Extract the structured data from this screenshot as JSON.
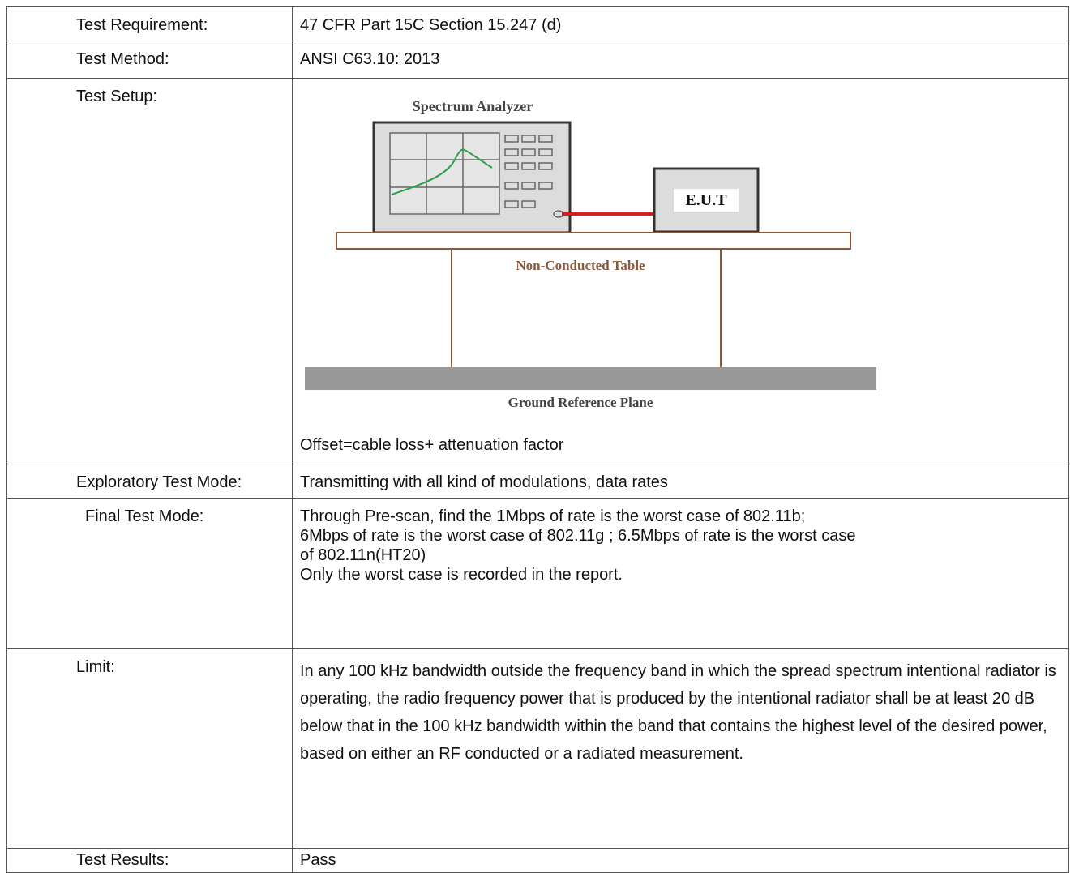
{
  "table": {
    "rows": [
      {
        "label": "Test Requirement:",
        "content": "47 CFR Part 15C Section 15.247 (d)"
      },
      {
        "label": "Test Method:",
        "content": "ANSI C63.10: 2013"
      },
      {
        "label": "Test Setup:",
        "diagram": {
          "analyzer": "Spectrum Analyzer",
          "eut": "E.U.T",
          "table": "Non-Conducted Table",
          "ground": "Ground Reference Plane"
        },
        "content": "Offset=cable loss+ attenuation factor"
      },
      {
        "label": "Exploratory Test Mode:",
        "content": "Transmitting with all kind of modulations, data rates"
      },
      {
        "label": "Final Test Mode:",
        "paragraphs": [
          "Through Pre-scan, find the 1Mbps of rate is the worst case of 802.11b;",
          "6Mbps of rate is the worst case of 802.11g ; 6.5Mbps of rate is the worst case",
          "of 802.11n(HT20)",
          "Only the worst case is recorded in the report."
        ]
      },
      {
        "label": "Limit:",
        "content": "In any 100 kHz bandwidth outside the frequency band in which the spread spectrum intentional radiator is operating, the radio frequency power that is produced by the intentional radiator shall be at least 20 dB below that in the 100 kHz bandwidth within the band that contains the highest level of the desired power, based on either an RF conducted or a radiated measurement."
      },
      {
        "label": "Test Results:",
        "content": "Pass"
      }
    ]
  }
}
